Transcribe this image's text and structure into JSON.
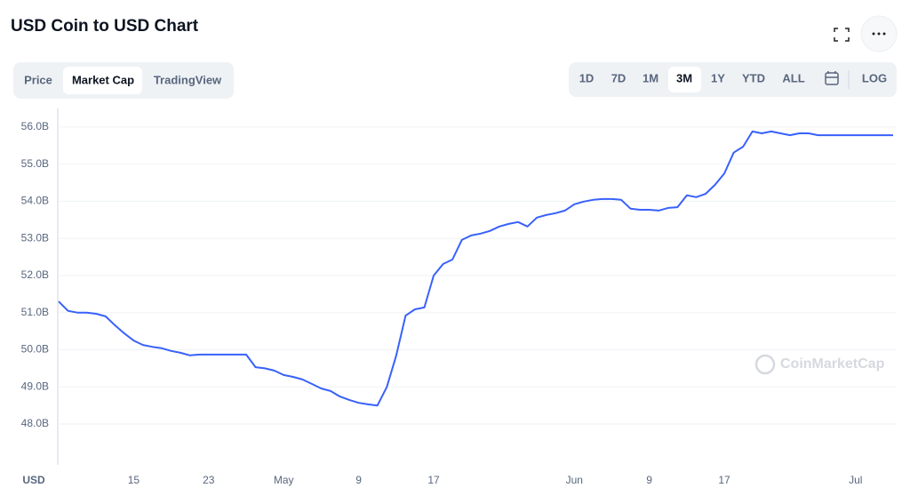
{
  "title": "USD Coin to USD Chart",
  "tabs": [
    "Price",
    "Market Cap",
    "TradingView"
  ],
  "ranges": [
    "1D",
    "7D",
    "1M",
    "3M",
    "1Y",
    "YTD",
    "ALL"
  ],
  "log": "LOG",
  "watermark": "CoinMarketCap",
  "currency": "USD",
  "chart_data": {
    "type": "line",
    "color": "#3861fb",
    "grid": true,
    "ylim": [
      46.9,
      56.5
    ],
    "yticks": [
      {
        "value": 48,
        "label": "48.0B"
      },
      {
        "value": 49,
        "label": "49.0B"
      },
      {
        "value": 50,
        "label": "50.0B"
      },
      {
        "value": 51,
        "label": "51.0B"
      },
      {
        "value": 52,
        "label": "52.0B"
      },
      {
        "value": 53,
        "label": "53.0B"
      },
      {
        "value": 54,
        "label": "54.0B"
      },
      {
        "value": 55,
        "label": "55.0B"
      },
      {
        "value": 56,
        "label": "56.0B"
      }
    ],
    "categories": [
      null,
      null,
      null,
      null,
      null,
      null,
      null,
      null,
      "15",
      null,
      null,
      null,
      null,
      null,
      null,
      null,
      "23",
      null,
      null,
      null,
      null,
      null,
      null,
      null,
      "May",
      null,
      null,
      null,
      null,
      null,
      null,
      null,
      "9",
      null,
      null,
      null,
      null,
      null,
      null,
      null,
      "17",
      null,
      null,
      null,
      null,
      null,
      null,
      null,
      null,
      null,
      null,
      null,
      null,
      null,
      null,
      "Jun",
      null,
      null,
      null,
      null,
      null,
      null,
      null,
      "9",
      null,
      null,
      null,
      null,
      null,
      null,
      null,
      "17",
      null,
      null,
      null,
      null,
      null,
      null,
      null,
      null,
      null,
      null,
      null,
      null,
      null,
      "Jul",
      null,
      null,
      null,
      null
    ],
    "values": [
      51.3,
      51.05,
      51.0,
      51.0,
      50.97,
      50.9,
      50.66,
      50.44,
      50.25,
      50.13,
      50.08,
      50.04,
      49.97,
      49.92,
      49.85,
      49.87,
      49.87,
      49.87,
      49.87,
      49.87,
      49.87,
      49.53,
      49.5,
      49.44,
      49.32,
      49.27,
      49.2,
      49.08,
      48.96,
      48.89,
      48.74,
      48.65,
      48.57,
      48.53,
      48.5,
      49.0,
      49.84,
      50.92,
      51.09,
      51.14,
      52.0,
      52.31,
      52.43,
      52.96,
      53.08,
      53.13,
      53.2,
      53.32,
      53.39,
      53.44,
      53.32,
      53.56,
      53.63,
      53.68,
      53.75,
      53.92,
      53.99,
      54.04,
      54.06,
      54.06,
      54.04,
      53.8,
      53.77,
      53.77,
      53.75,
      53.82,
      53.84,
      54.16,
      54.11,
      54.2,
      54.44,
      54.75,
      55.31,
      55.47,
      55.88,
      55.83,
      55.88,
      55.83,
      55.78,
      55.83,
      55.83,
      55.78,
      55.78,
      55.78,
      55.78,
      55.78,
      55.78,
      55.78,
      55.78,
      55.78
    ]
  }
}
